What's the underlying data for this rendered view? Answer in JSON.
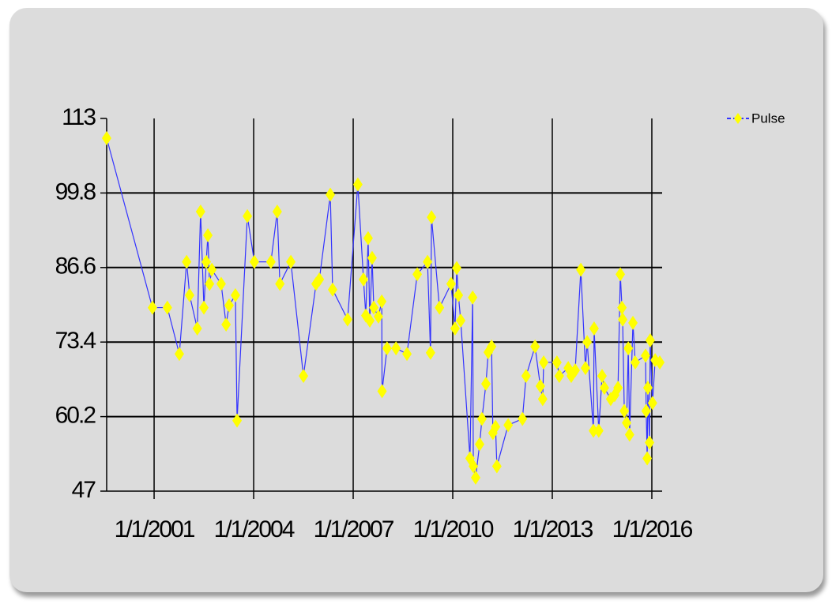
{
  "chart_data": {
    "type": "line",
    "x": [
      1999.57,
      2000.95,
      2001.4,
      2001.76,
      2001.98,
      2002.07,
      2002.3,
      2002.4,
      2002.5,
      2002.57,
      2002.62,
      2002.67,
      2002.74,
      2003.02,
      2003.17,
      2003.26,
      2003.45,
      2003.5,
      2003.81,
      2004.02,
      2004.52,
      2004.71,
      2004.79,
      2005.12,
      2005.5,
      2005.88,
      2005.98,
      2006.31,
      2006.38,
      2006.83,
      2007.14,
      2007.31,
      2007.38,
      2007.45,
      2007.5,
      2007.57,
      2007.62,
      2007.76,
      2007.86,
      2007.87,
      2008.02,
      2008.29,
      2008.62,
      2008.93,
      2009.24,
      2009.33,
      2009.36,
      2009.6,
      2009.95,
      2010.07,
      2010.12,
      2010.17,
      2010.24,
      2010.52,
      2010.6,
      2010.62,
      2010.69,
      2010.81,
      2010.88,
      2011.0,
      2011.07,
      2011.17,
      2011.21,
      2011.29,
      2011.33,
      2011.67,
      2012.1,
      2012.21,
      2012.48,
      2012.64,
      2012.71,
      2012.74,
      2013.14,
      2013.21,
      2013.48,
      2013.57,
      2013.69,
      2013.86,
      2014.0,
      2014.05,
      2014.24,
      2014.26,
      2014.4,
      2014.5,
      2014.57,
      2014.76,
      2014.88,
      2014.98,
      2015.05,
      2015.1,
      2015.12,
      2015.17,
      2015.24,
      2015.29,
      2015.33,
      2015.43,
      2015.5,
      2015.81,
      2015.83,
      2015.86,
      2015.88,
      2015.93,
      2015.95,
      2016.02,
      2016.1,
      2016.24
    ],
    "series": [
      {
        "name": "Pulse",
        "color": "#3333ff",
        "marker_color": "#ffff00",
        "values": [
          109.5,
          79.5,
          79.5,
          71.3,
          87.6,
          81.7,
          75.8,
          96.5,
          79.5,
          87.6,
          92.3,
          83.7,
          86.2,
          83.7,
          76.5,
          79.9,
          81.7,
          59.5,
          95.7,
          87.6,
          87.6,
          96.5,
          83.7,
          87.6,
          67.4,
          83.7,
          84.5,
          99.5,
          82.7,
          77.4,
          101.3,
          84.5,
          78.1,
          91.8,
          77.2,
          88.3,
          79.5,
          77.9,
          80.6,
          64.7,
          72.3,
          72.3,
          71.3,
          85.4,
          87.6,
          71.5,
          95.5,
          79.5,
          83.7,
          75.8,
          86.5,
          81.7,
          77.2,
          52.8,
          81.3,
          51.4,
          49.4,
          55.3,
          59.8,
          66.0,
          71.6,
          72.6,
          57.3,
          58.4,
          51.4,
          58.7,
          59.8,
          67.4,
          72.6,
          65.6,
          63.3,
          69.8,
          69.8,
          67.4,
          68.8,
          67.4,
          68.4,
          86.2,
          68.8,
          73.4,
          57.7,
          75.8,
          57.7,
          67.4,
          65.3,
          63.3,
          64.0,
          65.3,
          85.4,
          79.5,
          77.4,
          61.2,
          59.1,
          72.3,
          57.0,
          76.8,
          69.8,
          71.0,
          61.2,
          52.8,
          65.3,
          55.6,
          73.7,
          62.6,
          70.2,
          69.8
        ]
      }
    ],
    "xlim": [
      1999.57,
      2016.31
    ],
    "xticks": [
      {
        "value": 2001,
        "label": "1/1/2001"
      },
      {
        "value": 2004,
        "label": "1/1/2004"
      },
      {
        "value": 2007,
        "label": "1/1/2007"
      },
      {
        "value": 2010,
        "label": "1/1/2010"
      },
      {
        "value": 2013,
        "label": "1/1/2013"
      },
      {
        "value": 2016,
        "label": "1/1/2016"
      }
    ],
    "ylim": [
      47,
      113
    ],
    "yticks": [
      47,
      60.2,
      73.4,
      86.6,
      99.8,
      113
    ],
    "grid": true,
    "legend": "top-right"
  }
}
